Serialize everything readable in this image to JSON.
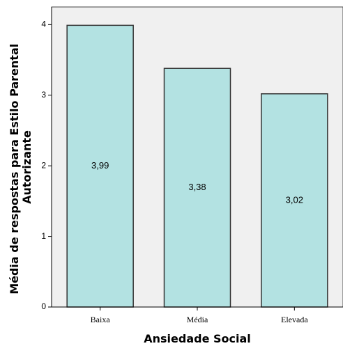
{
  "chart_data": {
    "type": "bar",
    "categories": [
      "Baixa",
      "Média",
      "Elevada"
    ],
    "values": [
      3.99,
      3.38,
      3.02
    ],
    "data_labels": [
      "3,99",
      "3,38",
      "3,02"
    ],
    "xlabel": "Ansiedade Social",
    "ylabel_lines": [
      "Média de respostas para Estilo Parental",
      "Autorizante"
    ],
    "ylim": [
      0,
      4.25
    ],
    "yticks": [
      0,
      1,
      2,
      3,
      4
    ],
    "grid": false,
    "colors": {
      "plot_background": "#f0f0f0",
      "bar_fill": "#b3e2e2",
      "bar_stroke": "#333333"
    }
  }
}
